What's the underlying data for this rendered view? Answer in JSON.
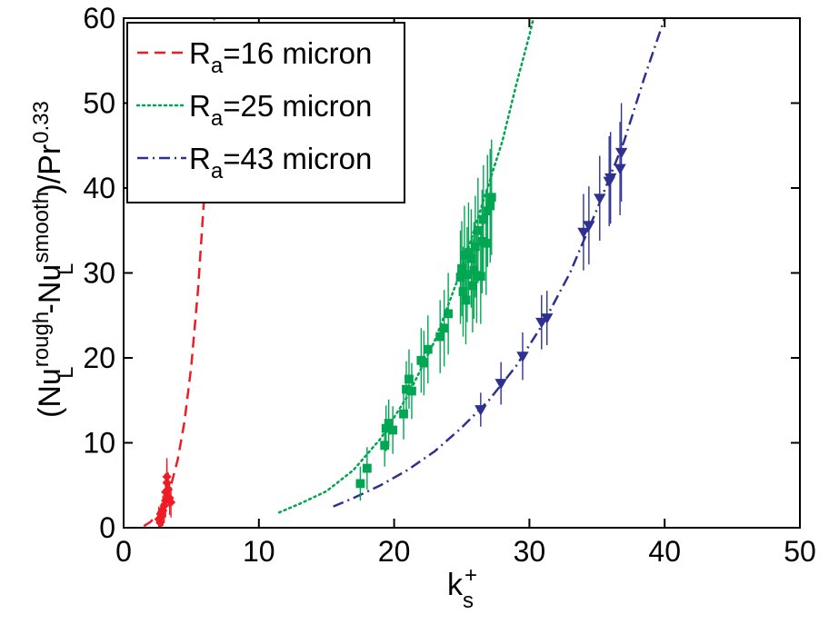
{
  "chart_data": {
    "type": "scatter",
    "title": "",
    "xlabel": {
      "base": "k",
      "sup": "+",
      "sub": "s"
    },
    "ylabel": {
      "part1": "(Nu",
      "sup1": "rough",
      "sub1": "L",
      "part2": "-Nu",
      "sup2": "smooth",
      "sub2": "L",
      "part3": ")/Pr",
      "sup3": "0.33"
    },
    "xlim": [
      0,
      50
    ],
    "ylim": [
      0,
      60
    ],
    "xticks": [
      0,
      10,
      20,
      30,
      40,
      50
    ],
    "yticks": [
      0,
      10,
      20,
      30,
      40,
      50,
      60
    ],
    "x_tick_labels": [
      "0",
      "10",
      "20",
      "30",
      "40",
      "50"
    ],
    "y_tick_labels": [
      "0",
      "10",
      "20",
      "30",
      "40",
      "50",
      "60"
    ],
    "grid": false,
    "legend_position": "top-left",
    "series": [
      {
        "name": "R_a=16 micron",
        "legend": {
          "base": "R",
          "sub": "a",
          "tail": "=16 micron"
        },
        "color": "#ee1c24",
        "line_style": "dashed",
        "marker": "diamond",
        "fit_curve": [
          [
            1.5,
            0.2
          ],
          [
            2.0,
            0.7
          ],
          [
            2.5,
            1.6
          ],
          [
            3.0,
            3.0
          ],
          [
            3.5,
            5.0
          ],
          [
            4.0,
            8.0
          ],
          [
            4.5,
            12.5
          ],
          [
            5.0,
            19.0
          ],
          [
            5.5,
            28.0
          ],
          [
            6.0,
            40.0
          ],
          [
            6.4,
            51.0
          ],
          [
            6.7,
            60.0
          ]
        ],
        "points": [
          {
            "x": 2.6,
            "y": 1.0,
            "err": 1.5
          },
          {
            "x": 2.7,
            "y": 0.6,
            "err": 1.3
          },
          {
            "x": 2.8,
            "y": 1.4,
            "err": 1.5
          },
          {
            "x": 2.9,
            "y": 2.0,
            "err": 1.8
          },
          {
            "x": 3.0,
            "y": 2.6,
            "err": 2.0
          },
          {
            "x": 3.1,
            "y": 3.2,
            "err": 2.0
          },
          {
            "x": 3.1,
            "y": 4.2,
            "err": 2.2
          },
          {
            "x": 3.2,
            "y": 5.3,
            "err": 2.3
          },
          {
            "x": 3.2,
            "y": 6.0,
            "err": 2.2
          },
          {
            "x": 3.3,
            "y": 4.5,
            "err": 2.0
          },
          {
            "x": 3.4,
            "y": 3.5,
            "err": 2.0
          },
          {
            "x": 3.5,
            "y": 3.0,
            "err": 1.8
          }
        ]
      },
      {
        "name": "R_a=25 micron",
        "legend": {
          "base": "R",
          "sub": "a",
          "tail": "=25 micron"
        },
        "color": "#00a651",
        "line_style": "dotted",
        "marker": "square",
        "fit_curve": [
          [
            11.5,
            1.8
          ],
          [
            13.0,
            2.8
          ],
          [
            15.0,
            4.3
          ],
          [
            17.0,
            6.8
          ],
          [
            19.0,
            10.5
          ],
          [
            21.0,
            15.5
          ],
          [
            23.0,
            22.0
          ],
          [
            25.0,
            30.5
          ],
          [
            26.5,
            38.0
          ],
          [
            28.0,
            45.5
          ],
          [
            29.0,
            52.0
          ],
          [
            30.0,
            58.0
          ],
          [
            30.3,
            60.0
          ]
        ],
        "points": [
          {
            "x": 17.5,
            "y": 5.2,
            "err": 2.0
          },
          {
            "x": 18.0,
            "y": 7.0,
            "err": 2.5
          },
          {
            "x": 19.3,
            "y": 9.7,
            "err": 2.5
          },
          {
            "x": 19.4,
            "y": 11.7,
            "err": 2.7
          },
          {
            "x": 19.6,
            "y": 12.3,
            "err": 2.8
          },
          {
            "x": 19.9,
            "y": 11.5,
            "err": 2.8
          },
          {
            "x": 20.7,
            "y": 13.4,
            "err": 3.0
          },
          {
            "x": 20.9,
            "y": 16.3,
            "err": 3.3
          },
          {
            "x": 21.1,
            "y": 17.5,
            "err": 3.5
          },
          {
            "x": 21.3,
            "y": 16.1,
            "err": 3.3
          },
          {
            "x": 22.0,
            "y": 19.7,
            "err": 3.8
          },
          {
            "x": 22.2,
            "y": 19.4,
            "err": 3.8
          },
          {
            "x": 22.5,
            "y": 21.0,
            "err": 4.0
          },
          {
            "x": 23.4,
            "y": 22.5,
            "err": 4.3
          },
          {
            "x": 23.7,
            "y": 23.5,
            "err": 4.5
          },
          {
            "x": 24.0,
            "y": 25.2,
            "err": 4.8
          },
          {
            "x": 24.9,
            "y": 29.5,
            "err": 5.5
          },
          {
            "x": 25.0,
            "y": 30.5,
            "err": 5.6
          },
          {
            "x": 25.1,
            "y": 27.8,
            "err": 5.3
          },
          {
            "x": 25.2,
            "y": 32.1,
            "err": 5.8
          },
          {
            "x": 25.3,
            "y": 26.8,
            "err": 5.2
          },
          {
            "x": 25.4,
            "y": 29.8,
            "err": 5.6
          },
          {
            "x": 25.5,
            "y": 32.4,
            "err": 5.9
          },
          {
            "x": 25.7,
            "y": 31.7,
            "err": 5.8
          },
          {
            "x": 25.8,
            "y": 28.5,
            "err": 5.5
          },
          {
            "x": 25.9,
            "y": 30.3,
            "err": 5.7
          },
          {
            "x": 26.0,
            "y": 33.1,
            "err": 6.0
          },
          {
            "x": 26.1,
            "y": 29.7,
            "err": 5.6
          },
          {
            "x": 26.2,
            "y": 35.0,
            "err": 6.2
          },
          {
            "x": 26.4,
            "y": 29.6,
            "err": 5.6
          },
          {
            "x": 26.5,
            "y": 33.7,
            "err": 6.1
          },
          {
            "x": 26.6,
            "y": 36.3,
            "err": 6.4
          },
          {
            "x": 26.8,
            "y": 33.5,
            "err": 6.1
          },
          {
            "x": 26.9,
            "y": 37.3,
            "err": 6.6
          },
          {
            "x": 27.2,
            "y": 38.9,
            "err": 6.8
          },
          {
            "x": 27.1,
            "y": 37.9,
            "err": 6.7
          }
        ]
      },
      {
        "name": "R_a=43 micron",
        "legend": {
          "base": "R",
          "sub": "a",
          "tail": "=43 micron"
        },
        "color": "#2e3192",
        "line_style": "dash-dot",
        "marker": "triangle-down",
        "fit_curve": [
          [
            15.5,
            2.5
          ],
          [
            17.0,
            3.5
          ],
          [
            19.0,
            5.0
          ],
          [
            21.0,
            6.8
          ],
          [
            23.0,
            9.0
          ],
          [
            25.0,
            11.8
          ],
          [
            27.0,
            15.0
          ],
          [
            29.0,
            19.0
          ],
          [
            31.0,
            24.0
          ],
          [
            33.0,
            30.0
          ],
          [
            35.0,
            37.5
          ],
          [
            37.0,
            45.5
          ],
          [
            38.5,
            53.0
          ],
          [
            40.0,
            60.0
          ]
        ],
        "points": [
          {
            "x": 26.4,
            "y": 13.9,
            "err": 2.0
          },
          {
            "x": 27.9,
            "y": 17.0,
            "err": 2.5
          },
          {
            "x": 29.5,
            "y": 20.2,
            "err": 2.8
          },
          {
            "x": 30.9,
            "y": 24.2,
            "err": 3.2
          },
          {
            "x": 31.3,
            "y": 24.7,
            "err": 3.2
          },
          {
            "x": 34.0,
            "y": 34.8,
            "err": 4.5
          },
          {
            "x": 34.4,
            "y": 35.6,
            "err": 4.6
          },
          {
            "x": 35.2,
            "y": 38.8,
            "err": 5.0
          },
          {
            "x": 35.9,
            "y": 40.8,
            "err": 5.3
          },
          {
            "x": 36.0,
            "y": 41.2,
            "err": 5.4
          },
          {
            "x": 36.7,
            "y": 42.3,
            "err": 5.5
          },
          {
            "x": 36.8,
            "y": 44.2,
            "err": 5.8
          }
        ]
      }
    ]
  }
}
